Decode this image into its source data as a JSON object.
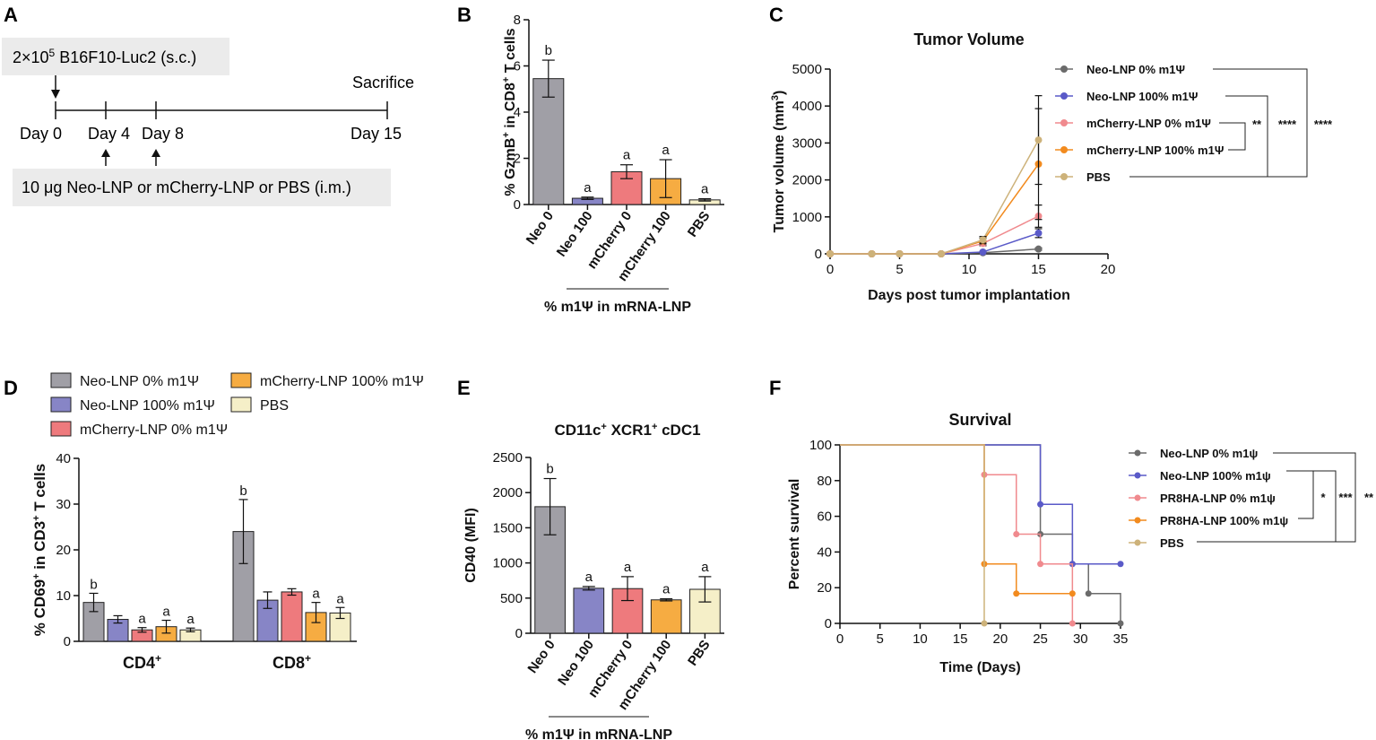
{
  "colors": {
    "gray": "#a09fa6",
    "blue": "#8785c6",
    "red": "#ee7a7d",
    "orange": "#f6ac42",
    "cream": "#f5efc8",
    "line_gray": "#6b6b6b",
    "line_blue": "#5a5ac8",
    "line_pink": "#f08a8e",
    "line_orange": "#f28b1f",
    "line_tan": "#cdb27a",
    "timeline_box": "#ebebeb"
  },
  "panel_a": {
    "label": "A",
    "inoculation_prefix": "2×10",
    "inoculation_exp": "5",
    "inoculation_suffix": " B16F10-Luc2 (s.c.)",
    "days": [
      "Day 0",
      "Day 4",
      "Day 8",
      "Day 15"
    ],
    "sacrifice": "Sacrifice",
    "vaccine": "10 μg Neo-LNP or mCherry-LNP or PBS (i.m.)"
  },
  "panel_b": {
    "label": "B"
  },
  "panel_c": {
    "label": "C",
    "sig_labels": [
      "**",
      "****",
      "****"
    ]
  },
  "panel_d": {
    "label": "D"
  },
  "panel_e": {
    "label": "E"
  },
  "panel_f": {
    "label": "F",
    "sig_labels": [
      "*",
      "***",
      "**"
    ]
  },
  "chart_data": [
    {
      "id": "B",
      "type": "bar",
      "title": "",
      "ylabel_parts": [
        "% GzmB",
        "+",
        " in CD8",
        "+",
        " T cells"
      ],
      "xlabel": "% m1Ψ in mRNA-LNP",
      "categories": [
        "Neo 0",
        "Neo 100",
        "mCherry 0",
        "mCherry 100",
        "PBS"
      ],
      "values": [
        5.45,
        0.27,
        1.42,
        1.12,
        0.2
      ],
      "errors": [
        0.8,
        0.05,
        0.3,
        0.82,
        0.05
      ],
      "letters": [
        "b",
        "a",
        "a",
        "a",
        "a"
      ],
      "colors": [
        "#a09fa6",
        "#8785c6",
        "#ee7a7d",
        "#f6ac42",
        "#f5efc8"
      ],
      "ylim": [
        0,
        8
      ],
      "yticks": [
        0,
        2,
        4,
        6,
        8
      ]
    },
    {
      "id": "C",
      "type": "line",
      "title": "Tumor Volume",
      "xlabel": "Days post tumor implantation",
      "ylabel_parts": [
        "Tumor volume (mm",
        "3",
        ")"
      ],
      "xlim": [
        0,
        20
      ],
      "ylim": [
        0,
        5000
      ],
      "xticks": [
        0,
        5,
        10,
        15,
        20
      ],
      "yticks": [
        0,
        1000,
        2000,
        3000,
        4000,
        5000
      ],
      "series": [
        {
          "name": "Neo-LNP 0% m1Ψ",
          "color": "#6b6b6b",
          "x": [
            0,
            3,
            5,
            8,
            11,
            15
          ],
          "y": [
            0,
            0,
            0,
            0,
            30,
            130
          ],
          "err": [
            0,
            0,
            0,
            0,
            10,
            30
          ]
        },
        {
          "name": "Neo-LNP 100% m1Ψ",
          "color": "#5a5ac8",
          "x": [
            0,
            3,
            5,
            8,
            11,
            15
          ],
          "y": [
            0,
            0,
            0,
            0,
            50,
            560
          ],
          "err": [
            0,
            0,
            0,
            0,
            15,
            120
          ]
        },
        {
          "name": "mCherry-LNP 0% m1Ψ",
          "color": "#f08a8e",
          "x": [
            0,
            3,
            5,
            8,
            11,
            15
          ],
          "y": [
            0,
            0,
            0,
            0,
            280,
            1020
          ],
          "err": [
            0,
            0,
            0,
            0,
            60,
            300
          ]
        },
        {
          "name": "mCherry-LNP 100% m1Ψ",
          "color": "#f28b1f",
          "x": [
            0,
            3,
            5,
            8,
            11,
            15
          ],
          "y": [
            0,
            0,
            0,
            0,
            350,
            2430
          ],
          "err": [
            0,
            0,
            0,
            0,
            80,
            1500
          ]
        },
        {
          "name": "PBS",
          "color": "#cdb27a",
          "x": [
            0,
            3,
            5,
            8,
            11,
            15
          ],
          "y": [
            0,
            0,
            0,
            0,
            380,
            3080
          ],
          "err": [
            0,
            0,
            0,
            0,
            90,
            1200
          ]
        }
      ]
    },
    {
      "id": "D",
      "type": "bar",
      "ylabel_parts": [
        "% CD69",
        "+",
        " in CD3",
        "+",
        " T cells"
      ],
      "groups": [
        "CD4",
        "CD8"
      ],
      "groups_sup": [
        "+",
        "+"
      ],
      "legend": [
        "Neo-LNP 0% m1Ψ",
        "Neo-LNP 100% m1Ψ",
        "mCherry-LNP 0% m1Ψ",
        "mCherry-LNP 100% m1Ψ",
        "PBS"
      ],
      "colors": [
        "#a09fa6",
        "#8785c6",
        "#ee7a7d",
        "#f6ac42",
        "#f5efc8"
      ],
      "series": [
        {
          "name": "Neo-LNP 0% m1Ψ",
          "values": [
            8.5,
            24
          ],
          "errors": [
            2,
            7
          ],
          "letters": [
            "b",
            "b"
          ]
        },
        {
          "name": "Neo-LNP 100% m1Ψ",
          "values": [
            4.8,
            9
          ],
          "errors": [
            0.8,
            1.8
          ],
          "letters": [
            "",
            ""
          ]
        },
        {
          "name": "mCherry-LNP 0% m1Ψ",
          "values": [
            2.5,
            10.8
          ],
          "errors": [
            0.5,
            0.7
          ],
          "letters": [
            "a",
            ""
          ]
        },
        {
          "name": "mCherry-LNP 100% m1Ψ",
          "values": [
            3.2,
            6.3
          ],
          "errors": [
            1.4,
            2.2
          ],
          "letters": [
            "a",
            "a"
          ]
        },
        {
          "name": "PBS",
          "values": [
            2.5,
            6.2
          ],
          "errors": [
            0.4,
            1.2
          ],
          "letters": [
            "a",
            "a"
          ]
        }
      ],
      "ylim": [
        0,
        40
      ],
      "yticks": [
        0,
        10,
        20,
        30,
        40
      ]
    },
    {
      "id": "E",
      "type": "bar",
      "title_parts": [
        "CD11c",
        "+",
        " XCR1",
        "+",
        " cDC1"
      ],
      "ylabel": "CD40 (MFI)",
      "xlabel": "% m1Ψ in mRNA-LNP",
      "categories": [
        "Neo 0",
        "Neo 100",
        "mCherry 0",
        "mCherry 100",
        "PBS"
      ],
      "values": [
        1800,
        640,
        635,
        475,
        625
      ],
      "errors": [
        400,
        25,
        170,
        15,
        180
      ],
      "letters": [
        "b",
        "a",
        "a",
        "a",
        "a"
      ],
      "colors": [
        "#a09fa6",
        "#8785c6",
        "#ee7a7d",
        "#f6ac42",
        "#f5efc8"
      ],
      "ylim": [
        0,
        2500
      ],
      "yticks": [
        0,
        500,
        1000,
        1500,
        2000,
        2500
      ]
    },
    {
      "id": "F",
      "type": "line",
      "title": "Survival",
      "xlabel": "Time (Days)",
      "ylabel": "Percent survival",
      "xlim": [
        0,
        35
      ],
      "ylim": [
        0,
        100
      ],
      "xticks": [
        0,
        5,
        10,
        15,
        20,
        25,
        30,
        35
      ],
      "yticks": [
        0,
        20,
        40,
        60,
        80,
        100
      ],
      "series": [
        {
          "name": "Neo-LNP 0% m1ψ",
          "color": "#6b6b6b",
          "x": [
            0,
            25,
            29,
            31,
            35
          ],
          "y": [
            100,
            50,
            33.3,
            16.7,
            0
          ]
        },
        {
          "name": "Neo-LNP 100% m1ψ",
          "color": "#5a5ac8",
          "x": [
            0,
            25,
            29,
            35
          ],
          "y": [
            100,
            66.7,
            33.3,
            33.3
          ]
        },
        {
          "name": "PR8HA-LNP 0% m1ψ",
          "color": "#f08a8e",
          "x": [
            0,
            18,
            22,
            25,
            29
          ],
          "y": [
            100,
            83.3,
            50,
            33.3,
            0
          ]
        },
        {
          "name": "PR8HA-LNP 100% m1ψ",
          "color": "#f28b1f",
          "x": [
            0,
            18,
            22,
            29
          ],
          "y": [
            100,
            33.3,
            16.7,
            16.7
          ]
        },
        {
          "name": "PBS",
          "color": "#cdb27a",
          "x": [
            0,
            18
          ],
          "y": [
            100,
            0
          ]
        }
      ]
    }
  ]
}
